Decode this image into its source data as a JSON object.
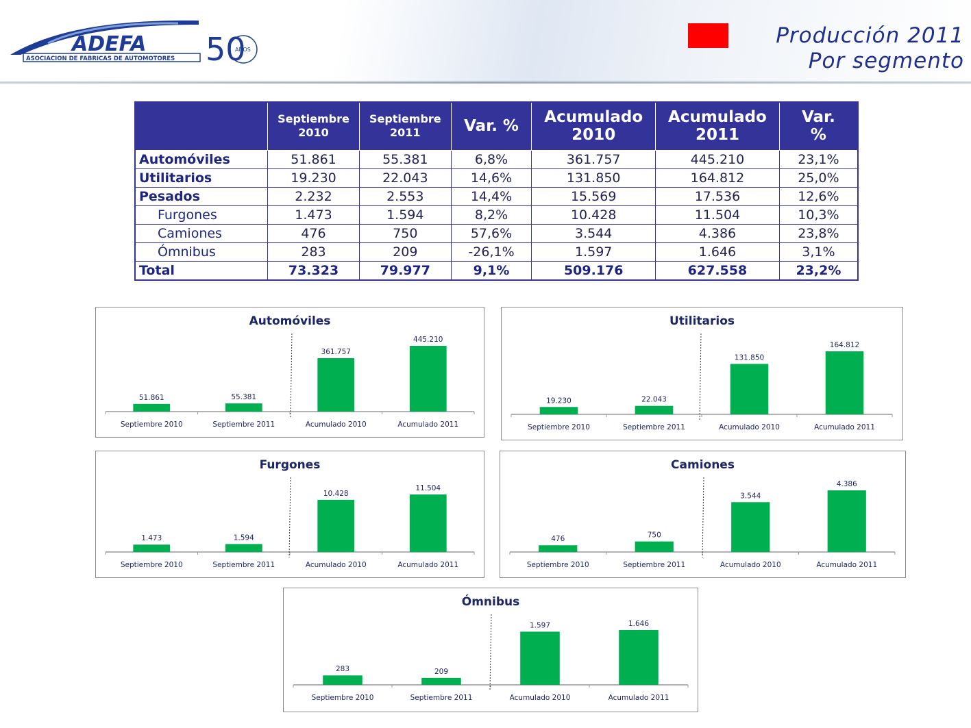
{
  "header": {
    "title_line1": "Producción 2011",
    "title_line2": "Por segmento",
    "logo_name": "ADEFA",
    "logo_subtitle": "ASOCIACION DE FABRICAS DE AUTOMOTORES",
    "logo_anniversary": "50",
    "logo_anniversary_label": "AÑOS",
    "accent_color": "#ff0000",
    "brand_color": "#1e2f8f"
  },
  "table": {
    "columns": [
      "",
      "Septiembre 2010",
      "Septiembre 2011",
      "Var. %",
      "Acumulado 2010",
      "Acumulado 2011",
      "Var. %"
    ],
    "col_lines": [
      [
        "",
        ""
      ],
      [
        "Septiembre",
        "2010"
      ],
      [
        "Septiembre",
        "2011"
      ],
      [
        "Var. %",
        ""
      ],
      [
        "Acumulado",
        "2010"
      ],
      [
        "Acumulado",
        "2011"
      ],
      [
        "Var.",
        "%"
      ]
    ],
    "rows": [
      {
        "label": "Automóviles",
        "sub": false,
        "values": [
          "51.861",
          "55.381",
          "6,8%",
          "361.757",
          "445.210",
          "23,1%"
        ]
      },
      {
        "label": "Utilitarios",
        "sub": false,
        "values": [
          "19.230",
          "22.043",
          "14,6%",
          "131.850",
          "164.812",
          "25,0%"
        ]
      },
      {
        "label": "Pesados",
        "sub": false,
        "values": [
          "2.232",
          "2.553",
          "14,4%",
          "15.569",
          "17.536",
          "12,6%"
        ]
      },
      {
        "label": "Furgones",
        "sub": true,
        "values": [
          "1.473",
          "1.594",
          "8,2%",
          "10.428",
          "11.504",
          "10,3%"
        ]
      },
      {
        "label": "Camiones",
        "sub": true,
        "values": [
          "476",
          "750",
          "57,6%",
          "3.544",
          "4.386",
          "23,8%"
        ]
      },
      {
        "label": "Ómnibus",
        "sub": true,
        "values": [
          "283",
          "209",
          "-26,1%",
          "1.597",
          "1.646",
          "3,1%"
        ]
      }
    ],
    "total": {
      "label": "Total",
      "values": [
        "73.323",
        "79.977",
        "9,1%",
        "509.176",
        "627.558",
        "23,2%"
      ]
    }
  },
  "chart_data": [
    {
      "type": "bar",
      "title": "Automóviles",
      "categories": [
        "Septiembre 2010",
        "Septiembre 2011",
        "Acumulado 2010",
        "Acumulado 2011"
      ],
      "values": [
        51861,
        55381,
        361757,
        445210
      ],
      "labels": [
        "51.861",
        "55.381",
        "361.757",
        "445.210"
      ],
      "color": "#00b050"
    },
    {
      "type": "bar",
      "title": "Utilitarios",
      "categories": [
        "Septiembre 2010",
        "Septiembre 2011",
        "Acumulado 2010",
        "Acumulado 2011"
      ],
      "values": [
        19230,
        22043,
        131850,
        164812
      ],
      "labels": [
        "19.230",
        "22.043",
        "131.850",
        "164.812"
      ],
      "color": "#00b050"
    },
    {
      "type": "bar",
      "title": "Furgones",
      "categories": [
        "Septiembre 2010",
        "Septiembre 2011",
        "Acumulado 2010",
        "Acumulado 2011"
      ],
      "values": [
        1473,
        1594,
        10428,
        11504
      ],
      "labels": [
        "1.473",
        "1.594",
        "10.428",
        "11.504"
      ],
      "color": "#00b050"
    },
    {
      "type": "bar",
      "title": "Camiones",
      "categories": [
        "Septiembre 2010",
        "Septiembre 2011",
        "Acumulado 2010",
        "Acumulado 2011"
      ],
      "values": [
        476,
        750,
        3544,
        4386
      ],
      "labels": [
        "476",
        "750",
        "3.544",
        "4.386"
      ],
      "color": "#00b050"
    },
    {
      "type": "bar",
      "title": "Ómnibus",
      "categories": [
        "Septiembre 2010",
        "Septiembre 2011",
        "Acumulado 2010",
        "Acumulado 2011"
      ],
      "values": [
        283,
        209,
        1597,
        1646
      ],
      "labels": [
        "283",
        "209",
        "1.597",
        "1.646"
      ],
      "color": "#00b050"
    }
  ]
}
